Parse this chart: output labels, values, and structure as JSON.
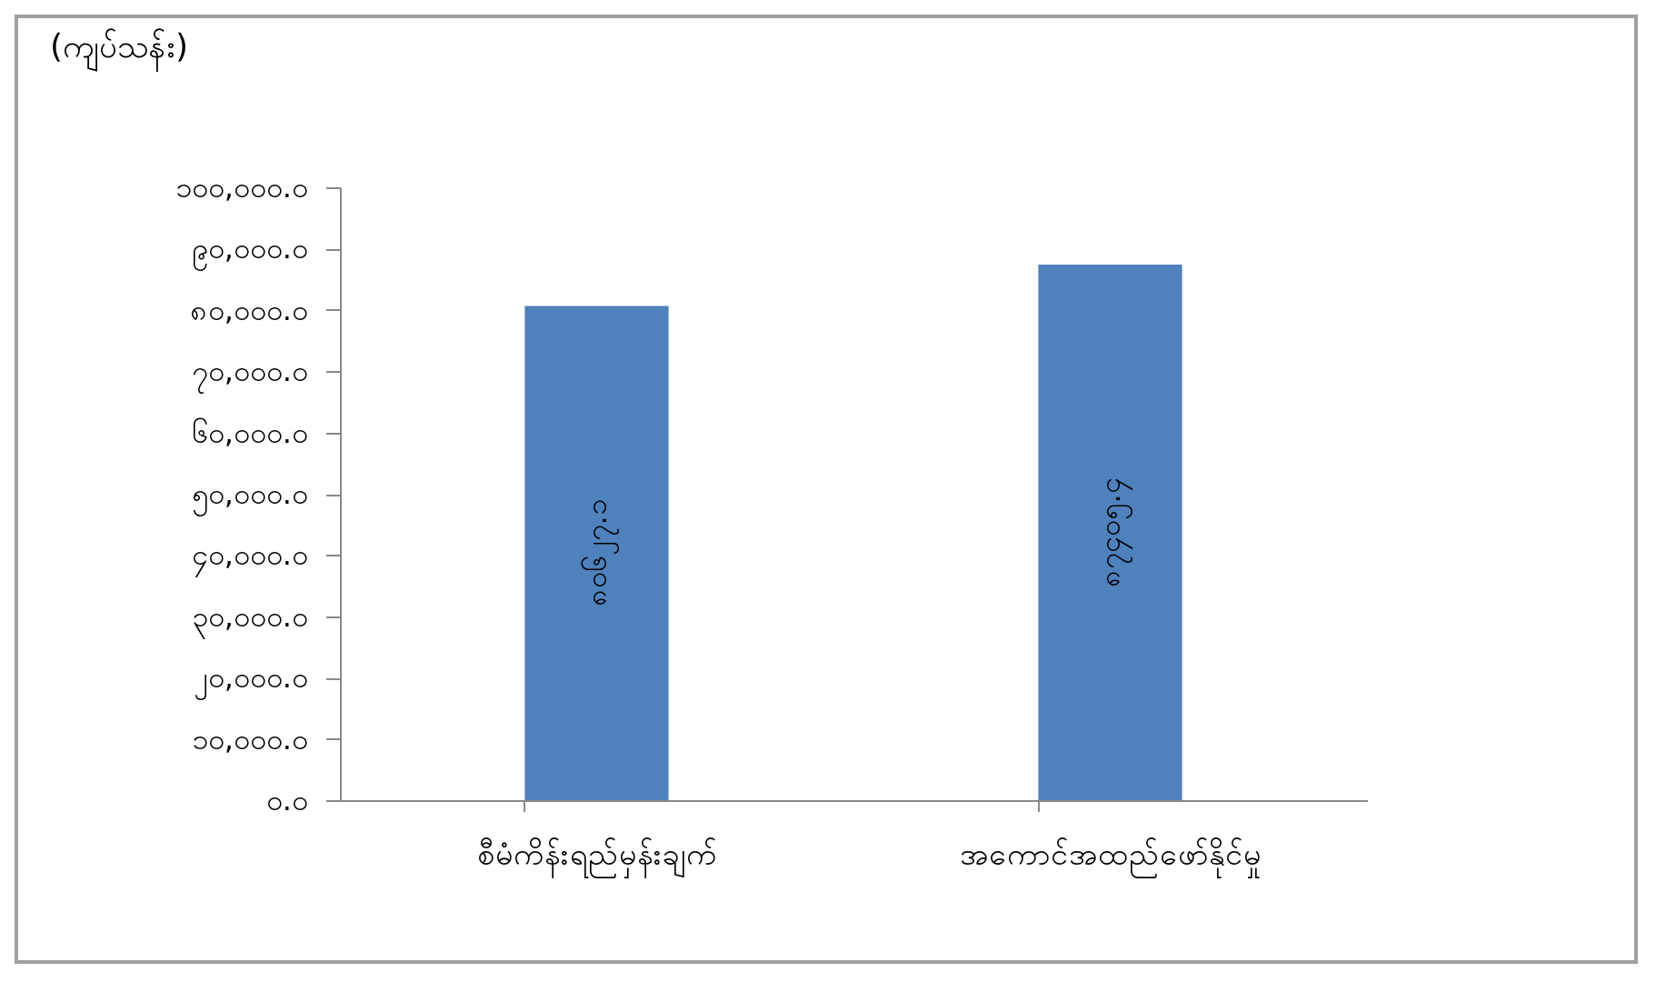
{
  "chart_data": {
    "type": "bar",
    "ylabel": "(ကျပ်သန်း)",
    "categories": [
      "စီမံကိန်းရည်မှန်းချက်",
      "အကောင်အထည်ဖော်နိုင်မှု"
    ],
    "values": [
      80627.1,
      87405.4
    ],
    "color": "#4f81bd",
    "value_labels": [
      "၈၀၆၂၇.၁",
      "၈၇၄၀၅.၄"
    ],
    "ylim": [
      0,
      100000
    ],
    "yticks": [
      {
        "value": 0,
        "label": "၀.၀"
      },
      {
        "value": 10000,
        "label": "၁၀,၀၀၀.၀"
      },
      {
        "value": 20000,
        "label": "၂၀,၀၀၀.၀"
      },
      {
        "value": 30000,
        "label": "၃၀,၀၀၀.၀"
      },
      {
        "value": 40000,
        "label": "၄၀,၀၀၀.၀"
      },
      {
        "value": 50000,
        "label": "၅၀,၀၀၀.၀"
      },
      {
        "value": 60000,
        "label": "၆၀,၀၀၀.၀"
      },
      {
        "value": 70000,
        "label": "၇၀,၀၀၀.၀"
      },
      {
        "value": 80000,
        "label": "၈၀,၀၀၀.၀"
      },
      {
        "value": 90000,
        "label": "၉၀,၀၀၀.၀"
      },
      {
        "value": 100000,
        "label": "၁၀၀,၀၀၀.၀"
      }
    ],
    "grid": false
  }
}
